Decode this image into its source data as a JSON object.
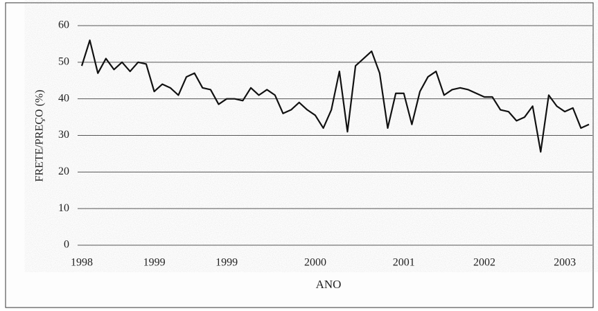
{
  "chart_data": {
    "type": "line",
    "ylabel": "FRETE/PREÇO (%)",
    "xlabel": "ANO",
    "categories": [
      "1998",
      null,
      null,
      null,
      null,
      null,
      null,
      null,
      null,
      "1999",
      null,
      null,
      null,
      null,
      null,
      null,
      null,
      null,
      "1999",
      null,
      null,
      null,
      null,
      null,
      null,
      null,
      null,
      null,
      null,
      "2000",
      null,
      null,
      null,
      null,
      null,
      null,
      null,
      null,
      null,
      null,
      "2001",
      null,
      null,
      null,
      null,
      null,
      null,
      null,
      null,
      null,
      "2002",
      null,
      null,
      null,
      null,
      null,
      null,
      null,
      null,
      null,
      "2003",
      null,
      null,
      null
    ],
    "series": [
      {
        "name": "FRETE/PREÇO",
        "color": "#111111",
        "values": [
          49,
          56,
          47,
          51,
          48,
          50,
          47.5,
          50,
          49.5,
          42,
          44,
          43,
          41,
          46,
          47,
          43,
          42.5,
          38.5,
          40,
          40,
          39.5,
          43,
          41,
          42.5,
          41,
          36,
          37,
          39,
          37,
          35.5,
          32,
          37,
          47.5,
          31,
          49,
          51,
          53,
          47,
          32,
          41.5,
          41.5,
          33,
          42,
          46,
          47.5,
          41,
          42.5,
          43,
          42.5,
          41.5,
          40.5,
          40.5,
          37,
          36.5,
          34,
          35,
          38,
          25.5,
          41,
          38,
          36.5,
          37.5,
          32,
          33
        ]
      }
    ],
    "ylim": [
      0,
      60
    ],
    "yticks": [
      0,
      10,
      20,
      30,
      40,
      50,
      60
    ],
    "grid": true
  }
}
